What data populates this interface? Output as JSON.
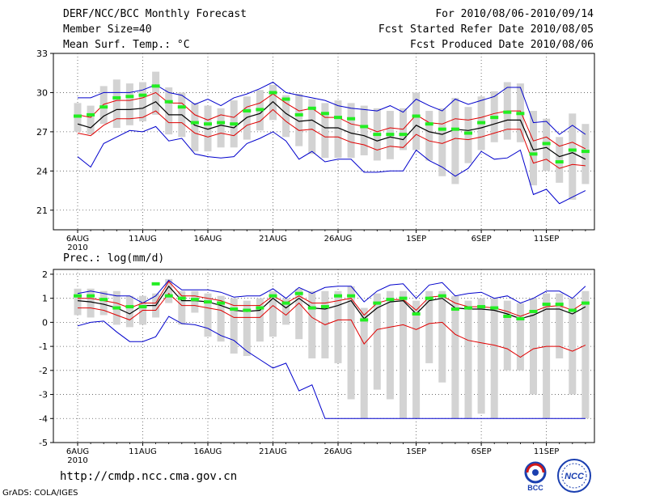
{
  "header": {
    "title": "DERF/NCC/BCC Monthly Forecast",
    "member_size": "Member Size=40",
    "variable": "Mean Surf. Temp.: °C",
    "period": "For 2010/08/06-2010/09/14",
    "started": "Fcst Started Refer Date 2010/08/05",
    "produced": "Fcst Produced Date 2010/08/06"
  },
  "footer": {
    "url": "http://cmdp.ncc.cma.gov.cn",
    "grads": "GrADS: COLA/IGES",
    "logo_bcc": "BCC",
    "logo_ncc": "NCC"
  },
  "colors": {
    "mean": "#000000",
    "spread": "#e00000",
    "range": "#0000cc",
    "median": "#22ee22",
    "box": "#d3d3d3"
  },
  "chart_data": [
    {
      "type": "line",
      "title": "Mean Surf. Temp.: °C",
      "ylim": [
        19.5,
        33
      ],
      "yticks": [
        21,
        24,
        27,
        30,
        33
      ],
      "x_tick_labels": [
        {
          "day": 1,
          "label": "6AUG",
          "sub": "2010"
        },
        {
          "day": 6,
          "label": "11AUG"
        },
        {
          "day": 11,
          "label": "16AUG"
        },
        {
          "day": 16,
          "label": "21AUG"
        },
        {
          "day": 21,
          "label": "26AUG"
        },
        {
          "day": 27,
          "label": "1SEP"
        },
        {
          "day": 32,
          "label": "6SEP"
        },
        {
          "day": 37,
          "label": "11SEP"
        }
      ],
      "days": [
        1,
        2,
        3,
        4,
        5,
        6,
        7,
        8,
        9,
        10,
        11,
        12,
        13,
        14,
        15,
        16,
        17,
        18,
        19,
        20,
        21,
        22,
        23,
        24,
        25,
        26,
        27,
        28,
        29,
        30,
        31,
        32,
        33,
        34,
        35,
        36,
        37,
        38,
        39,
        40
      ],
      "series": [
        {
          "name": "ensemble mean",
          "values": [
            27.6,
            27.3,
            28.2,
            28.7,
            28.7,
            28.8,
            29.3,
            28.3,
            28.3,
            27.5,
            27.2,
            27.5,
            27.3,
            28.1,
            28.4,
            29.3,
            28.4,
            27.8,
            27.9,
            27.3,
            27.3,
            26.9,
            26.7,
            26.3,
            26.6,
            26.4,
            27.5,
            27.0,
            26.8,
            27.2,
            27.1,
            27.3,
            27.6,
            27.9,
            27.9,
            25.6,
            25.8,
            25.1,
            25.4,
            24.9
          ]
        },
        {
          "name": "mean + std",
          "values": [
            28.3,
            28.1,
            29.1,
            29.4,
            29.4,
            29.6,
            30.0,
            29.2,
            29.2,
            28.3,
            27.9,
            28.3,
            28.1,
            28.9,
            29.2,
            29.9,
            29.2,
            28.6,
            28.8,
            28.1,
            28.1,
            27.6,
            27.4,
            27.0,
            27.3,
            27.2,
            28.3,
            27.7,
            27.6,
            28.0,
            27.9,
            28.1,
            28.4,
            28.6,
            28.6,
            26.3,
            26.6,
            25.9,
            26.2,
            25.7
          ]
        },
        {
          "name": "mean - std",
          "values": [
            26.9,
            26.7,
            27.5,
            28.0,
            28.0,
            28.1,
            28.6,
            27.7,
            27.7,
            26.9,
            26.6,
            26.9,
            26.7,
            27.5,
            27.8,
            28.7,
            27.8,
            27.1,
            27.2,
            26.6,
            26.6,
            26.2,
            26.0,
            25.6,
            25.9,
            25.8,
            26.8,
            26.3,
            26.1,
            26.5,
            26.4,
            26.6,
            26.9,
            27.2,
            27.2,
            24.6,
            24.9,
            24.2,
            24.5,
            24.4
          ]
        },
        {
          "name": "ensemble max",
          "values": [
            29.6,
            29.6,
            30.0,
            30.0,
            30.0,
            30.2,
            30.6,
            30.0,
            29.8,
            29.1,
            29.5,
            29.0,
            29.6,
            29.9,
            30.3,
            30.8,
            30.0,
            29.8,
            29.6,
            29.4,
            29.0,
            28.8,
            28.7,
            28.6,
            29.0,
            28.5,
            29.5,
            29.0,
            28.6,
            29.5,
            29.1,
            29.4,
            29.7,
            30.4,
            30.4,
            27.7,
            27.8,
            26.8,
            27.5,
            26.8
          ]
        },
        {
          "name": "ensemble min",
          "values": [
            25.1,
            24.3,
            26.1,
            26.6,
            27.1,
            27.0,
            27.4,
            26.3,
            26.5,
            25.3,
            25.1,
            25.0,
            25.1,
            26.1,
            26.5,
            27.0,
            26.3,
            24.9,
            25.5,
            24.7,
            24.9,
            24.9,
            23.9,
            23.9,
            24.0,
            24.0,
            25.6,
            24.8,
            24.3,
            23.6,
            24.2,
            25.5,
            24.9,
            25.0,
            25.6,
            22.2,
            22.6,
            21.5,
            22.0,
            22.5
          ]
        },
        {
          "name": "box high",
          "values": [
            29.2,
            29.0,
            30.5,
            31.0,
            30.7,
            30.8,
            31.6,
            30.4,
            30.0,
            29.2,
            29.0,
            28.8,
            29.4,
            29.7,
            30.2,
            30.6,
            29.8,
            29.9,
            29.5,
            29.2,
            29.4,
            29.2,
            29.0,
            28.8,
            28.6,
            28.8,
            30.0,
            28.6,
            28.8,
            29.6,
            28.9,
            29.7,
            30.1,
            30.8,
            30.7,
            28.6,
            28.0,
            26.6,
            28.4,
            27.6
          ]
        },
        {
          "name": "box low",
          "values": [
            27.0,
            26.8,
            27.6,
            27.3,
            27.5,
            27.8,
            28.3,
            26.8,
            26.6,
            25.5,
            25.5,
            25.8,
            25.8,
            26.4,
            27.1,
            27.9,
            26.6,
            25.9,
            25.3,
            25.0,
            25.0,
            25.0,
            25.2,
            24.8,
            24.9,
            25.6,
            25.6,
            24.8,
            23.6,
            23.0,
            24.6,
            25.6,
            26.2,
            26.4,
            26.2,
            22.9,
            24.0,
            23.1,
            21.8,
            23.0
          ]
        },
        {
          "name": "median",
          "values": [
            28.2,
            28.3,
            28.9,
            29.6,
            29.7,
            29.8,
            30.5,
            29.3,
            28.9,
            27.7,
            27.6,
            27.7,
            27.6,
            28.6,
            28.7,
            30.0,
            29.5,
            28.3,
            28.8,
            28.4,
            28.1,
            28.0,
            27.4,
            26.8,
            26.8,
            26.8,
            28.2,
            27.6,
            27.2,
            27.2,
            26.9,
            27.7,
            28.1,
            28.5,
            28.4,
            25.3,
            26.1,
            24.7,
            25.6,
            25.5
          ]
        }
      ]
    },
    {
      "type": "line",
      "title": "Prec.: log(mm/d)",
      "ylim": [
        -5,
        2.2
      ],
      "yticks": [
        -5,
        -4,
        -3,
        -2,
        -1,
        0,
        1,
        2
      ],
      "x_tick_labels": [
        {
          "day": 1,
          "label": "6AUG",
          "sub": "2010"
        },
        {
          "day": 6,
          "label": "11AUG"
        },
        {
          "day": 11,
          "label": "16AUG"
        },
        {
          "day": 16,
          "label": "21AUG"
        },
        {
          "day": 21,
          "label": "26AUG"
        },
        {
          "day": 27,
          "label": "1SEP"
        },
        {
          "day": 32,
          "label": "6SEP"
        },
        {
          "day": 37,
          "label": "11SEP"
        }
      ],
      "days": [
        1,
        2,
        3,
        4,
        5,
        6,
        7,
        8,
        9,
        10,
        11,
        12,
        13,
        14,
        15,
        16,
        17,
        18,
        19,
        20,
        21,
        22,
        23,
        24,
        25,
        26,
        27,
        28,
        29,
        30,
        31,
        32,
        33,
        34,
        35,
        36,
        37,
        38,
        39,
        40
      ],
      "series": [
        {
          "name": "ensemble mean",
          "values": [
            0.9,
            0.85,
            0.75,
            0.6,
            0.35,
            0.7,
            0.7,
            1.5,
            0.9,
            0.9,
            0.85,
            0.7,
            0.5,
            0.45,
            0.5,
            1.0,
            0.6,
            1.0,
            0.6,
            0.55,
            0.7,
            0.9,
            0.15,
            0.6,
            0.85,
            0.9,
            0.35,
            0.9,
            1.0,
            0.6,
            0.55,
            0.55,
            0.5,
            0.35,
            0.15,
            0.3,
            0.55,
            0.55,
            0.35,
            0.65
          ]
        },
        {
          "name": "mean + std",
          "values": [
            1.0,
            1.0,
            0.9,
            0.8,
            0.6,
            0.8,
            0.8,
            1.7,
            1.1,
            1.1,
            1.0,
            0.9,
            0.7,
            0.7,
            0.7,
            1.1,
            0.8,
            1.1,
            0.8,
            0.8,
            0.9,
            1.0,
            0.3,
            0.8,
            0.95,
            0.95,
            0.5,
            1.05,
            1.1,
            0.8,
            0.65,
            0.65,
            0.6,
            0.45,
            0.25,
            0.45,
            0.65,
            0.7,
            0.5,
            0.85
          ]
        },
        {
          "name": "mean - std",
          "values": [
            0.6,
            0.6,
            0.5,
            0.3,
            0.1,
            0.5,
            0.5,
            1.2,
            0.7,
            0.7,
            0.6,
            0.5,
            0.2,
            0.2,
            0.2,
            0.7,
            0.3,
            0.8,
            0.2,
            -0.1,
            0.1,
            0.1,
            -0.9,
            -0.3,
            -0.2,
            -0.1,
            -0.3,
            -0.05,
            0.0,
            -0.5,
            -0.75,
            -0.85,
            -0.95,
            -1.1,
            -1.45,
            -1.1,
            -1.0,
            -1.0,
            -1.2,
            -0.95
          ]
        },
        {
          "name": "ensemble max",
          "values": [
            1.2,
            1.3,
            1.2,
            1.1,
            1.1,
            0.8,
            1.1,
            1.75,
            1.35,
            1.35,
            1.35,
            1.25,
            1.05,
            1.1,
            1.1,
            1.4,
            1.0,
            1.45,
            1.2,
            1.45,
            1.5,
            1.5,
            0.85,
            1.3,
            1.55,
            1.6,
            1.0,
            1.55,
            1.65,
            1.1,
            1.2,
            1.25,
            1.0,
            1.1,
            0.8,
            1.0,
            1.3,
            1.3,
            1.0,
            1.5
          ]
        },
        {
          "name": "ensemble min",
          "values": [
            -0.15,
            0.0,
            0.05,
            -0.4,
            -0.8,
            -0.8,
            -0.6,
            0.25,
            -0.05,
            -0.1,
            -0.25,
            -0.55,
            -0.75,
            -1.2,
            -1.55,
            -1.9,
            -1.7,
            -2.85,
            -2.6,
            -4.0,
            -4.0,
            -4.0,
            -4.0,
            -4.0,
            -4.0,
            -4.0,
            -4.0,
            -4.0,
            -4.0,
            -4.0,
            -4.0,
            -4.0,
            -4.0,
            -4.0,
            -4.0,
            -4.0,
            -4.0,
            -4.0,
            -4.0,
            -4.0
          ]
        },
        {
          "name": "box high",
          "values": [
            1.4,
            1.4,
            1.3,
            1.3,
            1.1,
            1.1,
            1.2,
            1.8,
            1.3,
            1.3,
            1.2,
            1.1,
            1.0,
            0.9,
            1.0,
            1.3,
            1.0,
            1.4,
            1.3,
            1.3,
            1.3,
            1.5,
            0.6,
            1.2,
            1.3,
            1.3,
            0.9,
            1.3,
            1.3,
            1.1,
            0.9,
            1.0,
            1.0,
            0.9,
            0.8,
            1.0,
            1.2,
            1.2,
            1.0,
            1.3
          ]
        },
        {
          "name": "box low",
          "values": [
            0.3,
            0.2,
            0.3,
            -0.1,
            -0.2,
            -0.1,
            0.2,
            0.8,
            -0.1,
            0.4,
            -0.6,
            -0.8,
            -1.3,
            -1.4,
            -0.8,
            -0.6,
            -0.1,
            -0.7,
            -1.5,
            -1.5,
            -1.7,
            -3.2,
            -4.0,
            -2.8,
            -3.2,
            -4.0,
            -4.0,
            -1.7,
            -2.5,
            -4.0,
            -4.0,
            -3.8,
            -4.0,
            -2.0,
            -2.0,
            -3.0,
            -4.0,
            -1.5,
            -3.0,
            -4.0
          ]
        },
        {
          "name": "median",
          "values": [
            1.1,
            1.1,
            0.95,
            0.6,
            0.65,
            0.65,
            1.6,
            1.1,
            1.0,
            0.95,
            0.85,
            0.8,
            0.55,
            0.5,
            0.6,
            1.1,
            0.8,
            1.2,
            0.6,
            0.65,
            1.1,
            1.1,
            0.1,
            0.8,
            0.95,
            1.0,
            0.35,
            1.0,
            1.1,
            0.55,
            0.6,
            0.65,
            0.6,
            0.25,
            0.15,
            0.45,
            0.75,
            0.75,
            0.5,
            0.8
          ]
        }
      ]
    }
  ]
}
